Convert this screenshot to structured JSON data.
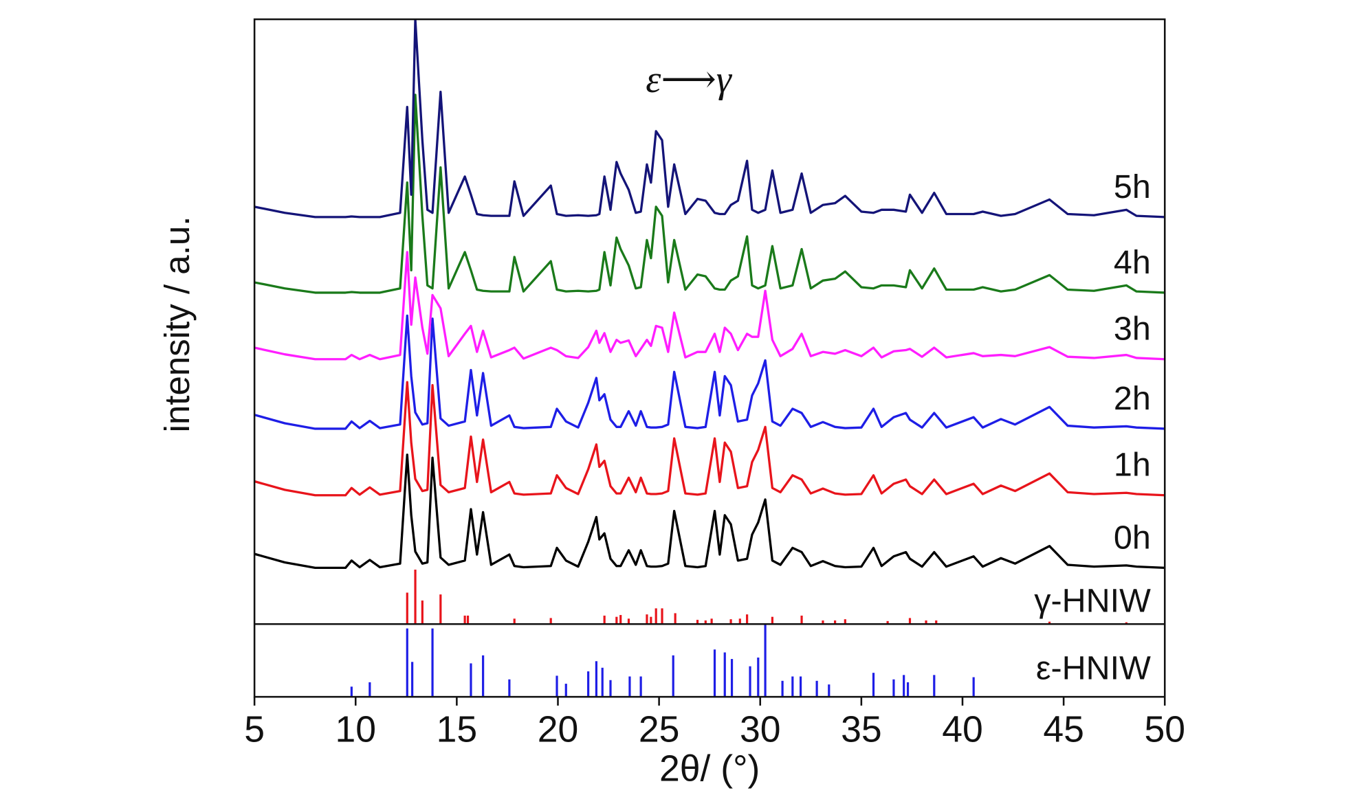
{
  "chart_data": [
    {
      "type": "line",
      "annotation": "ε⟶γ",
      "xlim": [
        5,
        50
      ],
      "ylim": [
        0,
        100
      ],
      "x": [
        5,
        6.5,
        8,
        9.5,
        9.8,
        10.2,
        10.7,
        11.2,
        12.2,
        12.55,
        12.75,
        12.95,
        13.3,
        13.55,
        13.8,
        14.2,
        14.6,
        15.4,
        15.7,
        16.0,
        16.3,
        16.7,
        17.6,
        17.85,
        18.3,
        19.65,
        19.95,
        20.4,
        21.0,
        21.5,
        21.9,
        22.05,
        22.3,
        22.6,
        22.9,
        23.1,
        23.5,
        23.85,
        24.1,
        24.4,
        24.6,
        24.85,
        25.15,
        25.45,
        25.75,
        26.3,
        26.9,
        27.3,
        27.75,
        28.0,
        28.25,
        28.55,
        28.9,
        29.35,
        29.6,
        29.9,
        30.25,
        30.6,
        31.0,
        31.6,
        32.05,
        32.5,
        33.1,
        33.7,
        34.2,
        35.0,
        35.6,
        36.0,
        36.6,
        37.2,
        37.4,
        38.0,
        38.6,
        39.2,
        40.55,
        41.0,
        41.9,
        42.6,
        44.3,
        45.2,
        46.5,
        48.1,
        48.6,
        50
      ],
      "series": [
        {
          "name": "0h",
          "color": "#000000",
          "values": [
            11.6,
            10.2,
            9.3,
            9.3,
            10.5,
            9.4,
            10.6,
            9.4,
            10,
            28,
            18,
            12,
            10,
            10.2,
            27.5,
            11,
            9.8,
            10.5,
            19,
            11.5,
            18.5,
            9.8,
            11.5,
            9.6,
            9.4,
            9.6,
            12.6,
            10.5,
            9.5,
            13.6,
            17.7,
            14,
            15,
            10.8,
            9.6,
            9.6,
            12.2,
            9.8,
            12.2,
            9.6,
            9.5,
            9.5,
            9.6,
            10,
            18.7,
            9.6,
            9.4,
            9.6,
            18.7,
            11.5,
            18,
            16.5,
            10.5,
            10.8,
            14.8,
            16.8,
            20.6,
            10.5,
            9.8,
            12.6,
            11.9,
            9.6,
            10.4,
            9.6,
            9.4,
            9.5,
            12.6,
            9.6,
            11.2,
            11.9,
            10.8,
            9.5,
            11.9,
            9.5,
            11.2,
            9.5,
            10.9,
            10,
            12.9,
            9.8,
            9.5,
            9.7,
            9.5,
            9.3
          ]
        },
        {
          "name": "1h",
          "color": "#e8141b",
          "values": [
            23.6,
            22.2,
            21.3,
            21.3,
            22.5,
            21.4,
            22.6,
            21.4,
            22,
            40,
            30,
            24,
            22,
            22.2,
            39.5,
            23,
            21.8,
            22.5,
            31,
            23.5,
            30.5,
            21.8,
            23.5,
            21.6,
            21.4,
            21.6,
            24.6,
            22.5,
            21.5,
            25.6,
            29.7,
            26,
            27,
            22.8,
            21.6,
            21.6,
            24.2,
            21.8,
            24.2,
            21.6,
            21.5,
            21.5,
            21.6,
            22,
            30.7,
            21.6,
            21.4,
            21.6,
            30.7,
            23.5,
            30,
            28.5,
            22.5,
            22.8,
            26.8,
            28.8,
            32.6,
            22.5,
            21.8,
            24.6,
            23.9,
            21.6,
            22.4,
            21.6,
            21.4,
            21.5,
            24.6,
            21.6,
            23.2,
            23.9,
            22.8,
            21.5,
            23.9,
            21.5,
            23.2,
            21.5,
            22.9,
            22,
            24.9,
            21.8,
            21.5,
            21.7,
            21.5,
            21.3
          ]
        },
        {
          "name": "2h",
          "color": "#1e1ee6",
          "values": [
            34.6,
            33.2,
            32.3,
            32.3,
            33.5,
            32.4,
            33.6,
            32.4,
            33,
            51,
            41,
            35,
            33,
            33.2,
            50.5,
            34,
            32.8,
            33.5,
            42,
            34.5,
            41.5,
            32.8,
            34.5,
            32.6,
            32.4,
            32.6,
            35.6,
            33.5,
            32.5,
            36.6,
            40.7,
            37,
            38,
            33.8,
            32.6,
            32.6,
            35.2,
            32.8,
            35.2,
            32.6,
            32.5,
            32.5,
            32.6,
            33,
            41.7,
            32.6,
            32.4,
            32.6,
            41.7,
            34.5,
            41,
            39.5,
            33.5,
            33.8,
            37.8,
            39.8,
            43.6,
            33.5,
            32.8,
            35.6,
            34.9,
            32.6,
            33.4,
            32.6,
            32.4,
            32.5,
            35.6,
            32.6,
            34.2,
            34.9,
            33.8,
            32.5,
            34.9,
            32.5,
            34.2,
            32.5,
            33.9,
            33,
            35.9,
            32.8,
            32.5,
            32.7,
            32.5,
            32.3
          ]
        },
        {
          "name": "3h",
          "color": "#ff1eff",
          "values": [
            45.7,
            44.6,
            43.8,
            43.8,
            44.5,
            43.8,
            44.5,
            43.8,
            44.5,
            61.5,
            49.5,
            57.3,
            49,
            44.7,
            54.4,
            52.2,
            44.3,
            48,
            49.3,
            45,
            48.5,
            44.1,
            45.3,
            45.7,
            43.9,
            45.7,
            45.3,
            44.3,
            44,
            45.8,
            48.5,
            46.5,
            48.1,
            45,
            47,
            46.5,
            46.9,
            44.3,
            45.5,
            47,
            46,
            49.3,
            49,
            45,
            51.5,
            44.1,
            45,
            45,
            48,
            45,
            49,
            48,
            45.3,
            48,
            47.5,
            47.5,
            55.1,
            47,
            44.3,
            45.5,
            48,
            44.3,
            45,
            44.7,
            45.3,
            44.3,
            45.7,
            44.1,
            45.1,
            45.3,
            45.5,
            44.2,
            45.7,
            44.1,
            44.8,
            44.3,
            44.5,
            44.3,
            45.8,
            44.2,
            44,
            44.5,
            44,
            43.8
          ]
        },
        {
          "name": "4h",
          "color": "#1a7a1a",
          "values": [
            56.5,
            55.5,
            54.8,
            54.8,
            54.9,
            54.8,
            54.8,
            54.8,
            55.5,
            73,
            58.5,
            87.5,
            67.5,
            56,
            55.5,
            75.5,
            55.5,
            61.5,
            58.5,
            55.3,
            55.1,
            55,
            55,
            60.7,
            55,
            60,
            55.3,
            55,
            55.1,
            55,
            55.1,
            55.3,
            61.5,
            56,
            63.9,
            62,
            59.3,
            55.5,
            55.7,
            63.5,
            60.5,
            69,
            67.5,
            56.5,
            63.5,
            55.3,
            57.8,
            57.5,
            55.5,
            55.3,
            55.3,
            56.8,
            57.5,
            64.1,
            56,
            55.5,
            56,
            62.5,
            55.5,
            56,
            62,
            55.5,
            56.8,
            57.1,
            58.3,
            55.7,
            55.5,
            56,
            56,
            55.7,
            58.5,
            55.5,
            58.8,
            55.3,
            55.3,
            55.7,
            55,
            55.3,
            57.7,
            55.3,
            55.1,
            56,
            55,
            54.8
          ]
        },
        {
          "name": "5h",
          "color": "#141478",
          "values": [
            69,
            68,
            67.3,
            67.3,
            67.4,
            67.3,
            67.3,
            67.3,
            68,
            85.5,
            71,
            100,
            80,
            68.5,
            68,
            88,
            68,
            74,
            71,
            67.8,
            67.6,
            67.5,
            67.5,
            73.2,
            67.5,
            72.5,
            67.8,
            67.5,
            67.6,
            67.5,
            67.6,
            67.8,
            74,
            68.5,
            76.4,
            74.5,
            71.8,
            68,
            68.2,
            76,
            73,
            81.5,
            80,
            69,
            76,
            67.8,
            70.3,
            70,
            68,
            67.8,
            67.8,
            69.3,
            70,
            76.6,
            68.5,
            68,
            68.5,
            75,
            68,
            68.5,
            74.5,
            68,
            69.3,
            69.6,
            70.8,
            68.2,
            68,
            68.5,
            68.5,
            68.2,
            71,
            68,
            71.3,
            67.8,
            67.8,
            68.2,
            67.5,
            67.8,
            70.2,
            67.8,
            67.6,
            68.5,
            67.5,
            67.3
          ]
        }
      ],
      "sticks": {
        "name": "γ-HNIW",
        "color": "#e8141b",
        "x": [
          12.55,
          12.95,
          13.3,
          14.2,
          15.4,
          15.55,
          17.85,
          19.65,
          22.3,
          22.9,
          23.1,
          23.5,
          24.4,
          24.6,
          24.85,
          25.15,
          25.8,
          26.9,
          27.3,
          27.6,
          28.55,
          29.0,
          29.35,
          30.6,
          32.05,
          33.1,
          33.7,
          34.2,
          36.3,
          37.4,
          38.2,
          38.7,
          44.3,
          48.1
        ],
        "values": [
          5.2,
          9,
          3.9,
          4.9,
          1.4,
          1.4,
          0.9,
          1.0,
          1.4,
          1.2,
          1.5,
          0.9,
          1.6,
          1.2,
          2.6,
          2.6,
          1.8,
          0.7,
          0.6,
          0.9,
          0.8,
          0.9,
          1.6,
          1.2,
          1.4,
          0.6,
          0.6,
          0.8,
          0.5,
          1.0,
          0.6,
          0.6,
          0.4,
          0.3
        ]
      }
    },
    {
      "type": "stick",
      "name": "ε-HNIW",
      "color": "#1e1ee6",
      "xlabel": "2θ/ (°)",
      "ylabel": "intensity / a.u.",
      "xlim": [
        5,
        50
      ],
      "ylim": [
        0,
        100
      ],
      "xticks": [
        5,
        10,
        15,
        20,
        25,
        30,
        35,
        40,
        45,
        50
      ],
      "x": [
        9.8,
        10.7,
        12.55,
        12.8,
        13.8,
        15.7,
        16.3,
        17.6,
        19.95,
        20.4,
        21.5,
        21.9,
        22.2,
        22.6,
        23.55,
        24.1,
        25.7,
        27.75,
        28.25,
        28.6,
        29.5,
        29.9,
        30.25,
        31.1,
        31.6,
        32.0,
        32.8,
        33.4,
        35.6,
        36.6,
        37.1,
        37.3,
        38.6,
        40.55
      ],
      "values": [
        14,
        20,
        94,
        48,
        94,
        46,
        57,
        24,
        29,
        18,
        35,
        49,
        40,
        23,
        28,
        28,
        57,
        65,
        61,
        52,
        42,
        54,
        100,
        22,
        28,
        28,
        22,
        17,
        33,
        24,
        30,
        20,
        30,
        27
      ]
    }
  ]
}
